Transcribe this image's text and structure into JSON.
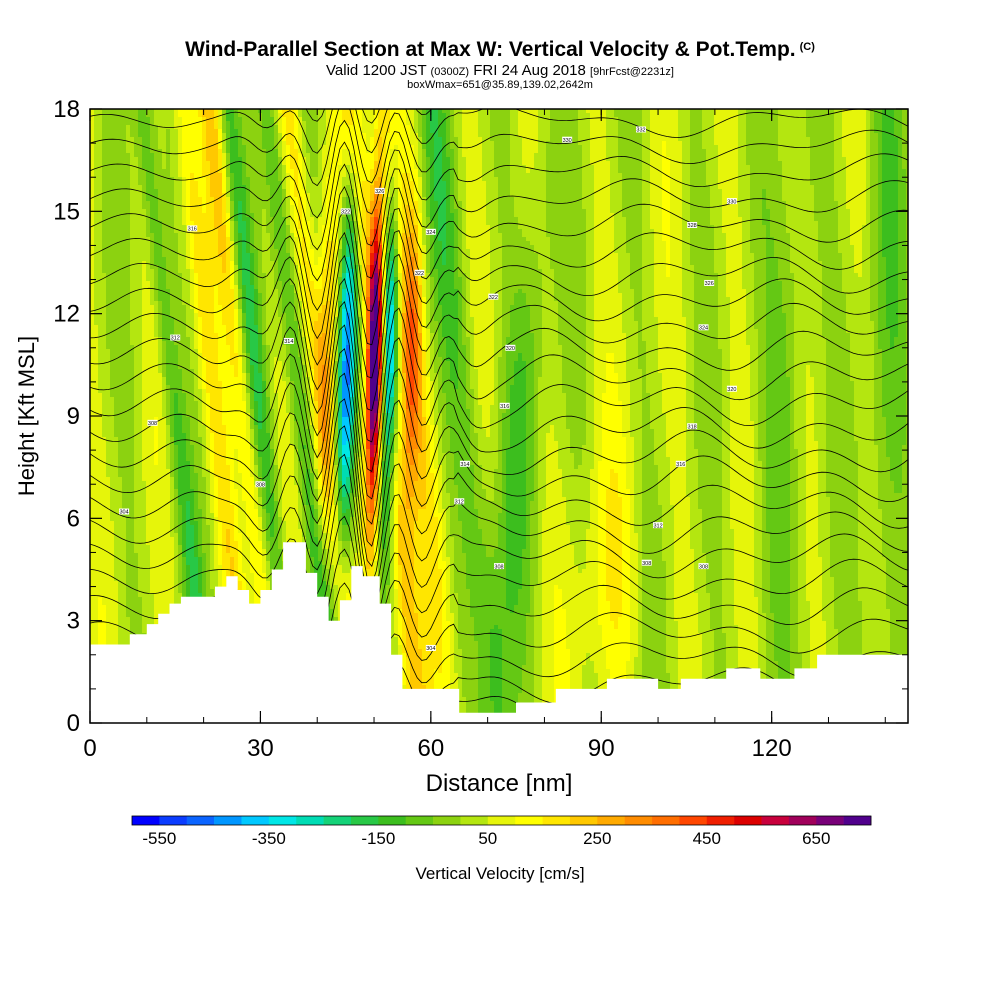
{
  "title": {
    "main": "Wind-Parallel Section at Max W: Vertical Velocity & Pot.Temp.",
    "copyright": "(C)",
    "valid_prefix": "Valid 1200 JST",
    "valid_utc": "(0300Z)",
    "valid_date": "FRI 24 Aug 2018",
    "forecast": "[9hrFcst@2231z]",
    "box_info": "boxWmax=651@35.89,139.02,2642m"
  },
  "chart_data": {
    "type": "contour-section",
    "xlabel": "Distance [nm]",
    "ylabel": "Height [Kft MSL]",
    "xlim": [
      0,
      144
    ],
    "ylim": [
      0,
      18
    ],
    "x_ticks": [
      0,
      30,
      60,
      90,
      120
    ],
    "y_ticks": [
      0,
      3,
      6,
      9,
      12,
      15,
      18
    ],
    "grid": false,
    "terrain_profile": [
      [
        0,
        2.3
      ],
      [
        7,
        2.3
      ],
      [
        7,
        2.6
      ],
      [
        10,
        2.6
      ],
      [
        10,
        2.9
      ],
      [
        12,
        2.9
      ],
      [
        12,
        3.2
      ],
      [
        14,
        3.2
      ],
      [
        14,
        3.5
      ],
      [
        16,
        3.5
      ],
      [
        16,
        3.7
      ],
      [
        22,
        3.7
      ],
      [
        22,
        4.0
      ],
      [
        24,
        4.0
      ],
      [
        24,
        4.3
      ],
      [
        26,
        4.3
      ],
      [
        26,
        3.9
      ],
      [
        28,
        3.9
      ],
      [
        28,
        3.5
      ],
      [
        30,
        3.5
      ],
      [
        30,
        3.9
      ],
      [
        32,
        3.9
      ],
      [
        32,
        4.5
      ],
      [
        34,
        4.5
      ],
      [
        34,
        5.3
      ],
      [
        38,
        5.3
      ],
      [
        38,
        4.4
      ],
      [
        40,
        4.4
      ],
      [
        40,
        3.7
      ],
      [
        42,
        3.7
      ],
      [
        42,
        3.0
      ],
      [
        44,
        3.0
      ],
      [
        44,
        3.6
      ],
      [
        46,
        3.6
      ],
      [
        46,
        4.6
      ],
      [
        48,
        4.6
      ],
      [
        48,
        4.3
      ],
      [
        51,
        4.3
      ],
      [
        51,
        3.5
      ],
      [
        53,
        3.5
      ],
      [
        53,
        2.0
      ],
      [
        55,
        2.0
      ],
      [
        55,
        1.0
      ],
      [
        65,
        1.0
      ],
      [
        65,
        0.3
      ],
      [
        75,
        0.3
      ],
      [
        75,
        0.6
      ],
      [
        82,
        0.6
      ],
      [
        82,
        1.0
      ],
      [
        91,
        1.0
      ],
      [
        91,
        1.3
      ],
      [
        100,
        1.3
      ],
      [
        100,
        1.0
      ],
      [
        104,
        1.0
      ],
      [
        104,
        1.3
      ],
      [
        112,
        1.3
      ],
      [
        112,
        1.6
      ],
      [
        118,
        1.6
      ],
      [
        118,
        1.3
      ],
      [
        124,
        1.3
      ],
      [
        124,
        1.6
      ],
      [
        128,
        1.6
      ],
      [
        128,
        2.0
      ],
      [
        144,
        2.0
      ]
    ],
    "theta_contour_labels": [
      {
        "x": 6,
        "y": 6.2,
        "label": "304"
      },
      {
        "x": 11,
        "y": 8.8,
        "label": "308"
      },
      {
        "x": 15,
        "y": 11.3,
        "label": "312"
      },
      {
        "x": 18,
        "y": 14.5,
        "label": "316"
      },
      {
        "x": 30,
        "y": 7.0,
        "label": "308"
      },
      {
        "x": 35,
        "y": 11.2,
        "label": "314"
      },
      {
        "x": 45,
        "y": 15.0,
        "label": "322"
      },
      {
        "x": 51,
        "y": 15.6,
        "label": "326"
      },
      {
        "x": 60,
        "y": 14.4,
        "label": "324"
      },
      {
        "x": 58,
        "y": 13.2,
        "label": "322"
      },
      {
        "x": 71,
        "y": 12.5,
        "label": "322"
      },
      {
        "x": 74,
        "y": 11.0,
        "label": "320"
      },
      {
        "x": 73,
        "y": 9.3,
        "label": "316"
      },
      {
        "x": 66,
        "y": 7.6,
        "label": "314"
      },
      {
        "x": 65,
        "y": 6.5,
        "label": "312"
      },
      {
        "x": 72,
        "y": 4.6,
        "label": "308"
      },
      {
        "x": 60,
        "y": 2.2,
        "label": "304"
      },
      {
        "x": 84,
        "y": 17.1,
        "label": "330"
      },
      {
        "x": 97,
        "y": 17.4,
        "label": "332"
      },
      {
        "x": 106,
        "y": 14.6,
        "label": "328"
      },
      {
        "x": 113,
        "y": 15.3,
        "label": "330"
      },
      {
        "x": 109,
        "y": 12.9,
        "label": "326"
      },
      {
        "x": 108,
        "y": 11.6,
        "label": "324"
      },
      {
        "x": 113,
        "y": 9.8,
        "label": "320"
      },
      {
        "x": 106,
        "y": 8.7,
        "label": "318"
      },
      {
        "x": 104,
        "y": 7.6,
        "label": "316"
      },
      {
        "x": 100,
        "y": 5.8,
        "label": "312"
      },
      {
        "x": 98,
        "y": 4.7,
        "label": "308"
      },
      {
        "x": 108,
        "y": 4.6,
        "label": "308"
      }
    ],
    "w_max_cms": 651,
    "w_max_location": {
      "lat": 35.89,
      "lon": 139.02,
      "height_m": 2642
    }
  },
  "colorbar": {
    "label": "Vertical Velocity [cm/s]",
    "min": -600,
    "max": 750,
    "step": 50,
    "tick_labels": [
      "-550",
      "-350",
      "-150",
      "50",
      "250",
      "450",
      "650"
    ],
    "colors": [
      "#0000ff",
      "#0a3cff",
      "#0a64ff",
      "#0096ff",
      "#00c8ff",
      "#00e6e6",
      "#00dcb4",
      "#14d278",
      "#28c846",
      "#3cbe1e",
      "#64c814",
      "#8cd210",
      "#b4e610",
      "#e6f50a",
      "#ffff00",
      "#ffe600",
      "#ffc800",
      "#ffaa00",
      "#ff8c00",
      "#ff6e00",
      "#ff4600",
      "#f01e00",
      "#dc0000",
      "#c8003c",
      "#a0005a",
      "#780078",
      "#50008c"
    ]
  }
}
